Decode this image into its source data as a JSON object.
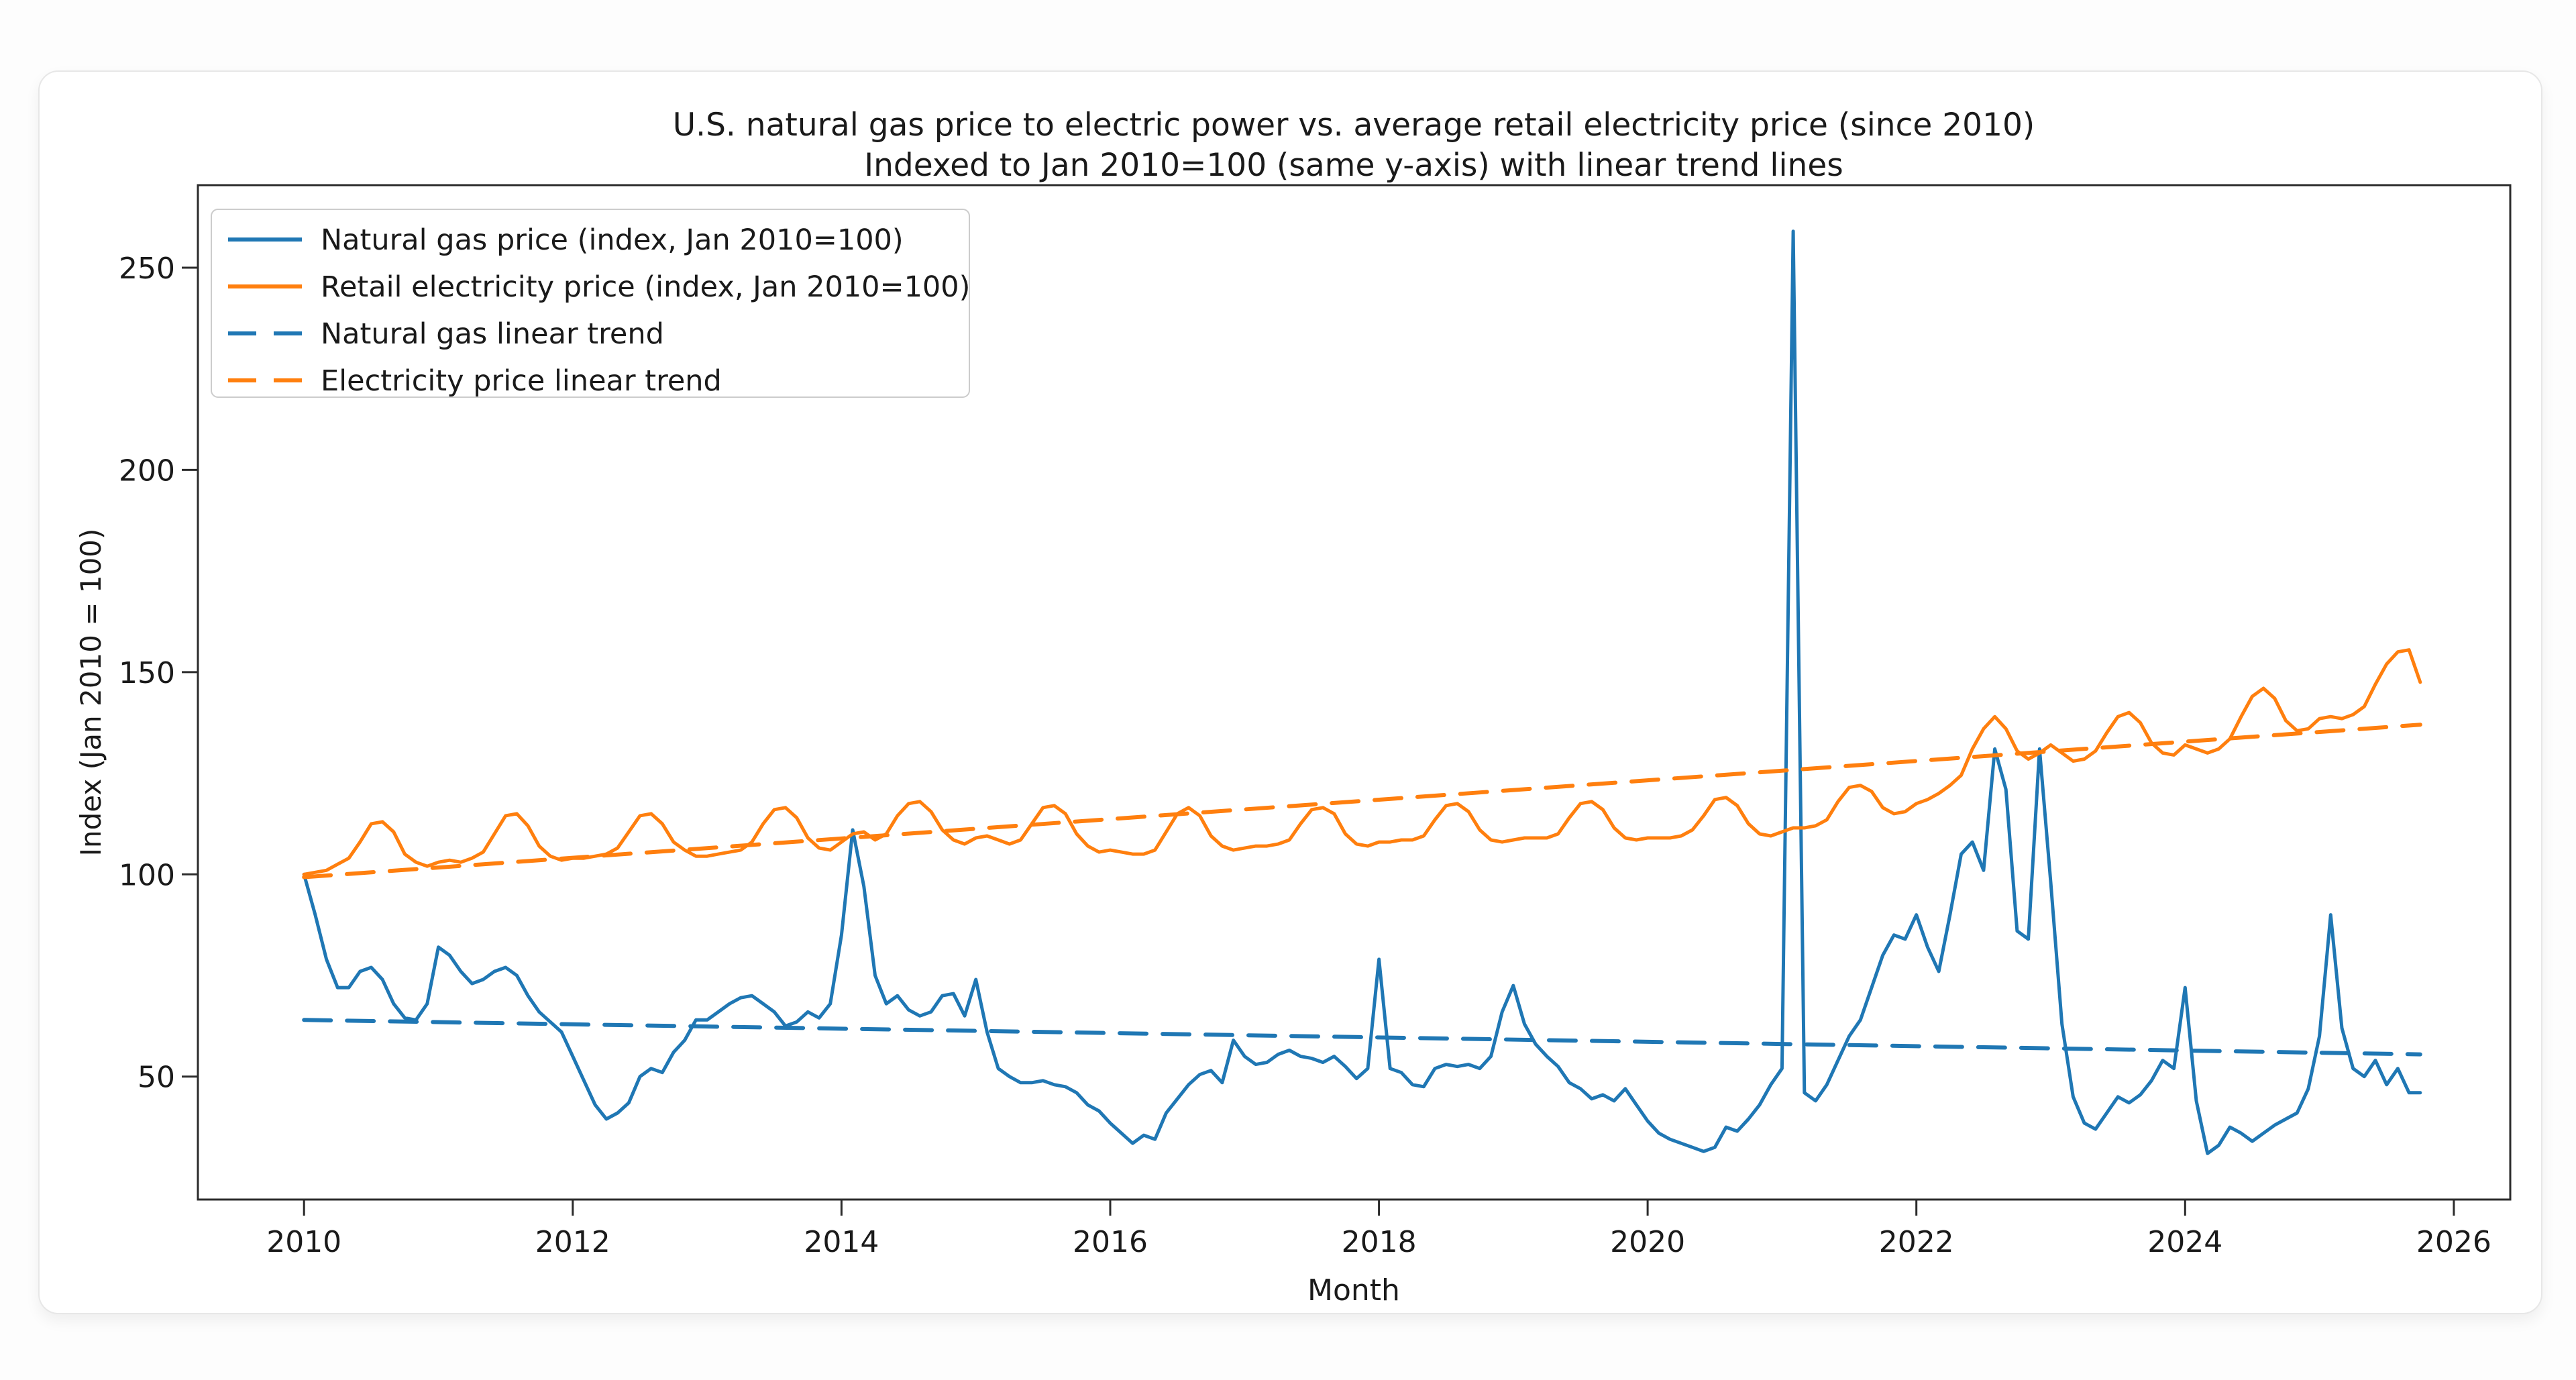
{
  "chart_data": {
    "type": "line",
    "title": "U.S. natural gas price to electric power vs. average retail electricity price (since 2010)",
    "subtitle": "Indexed to Jan 2010=100 (same y-axis) with linear trend lines",
    "xlabel": "Month",
    "ylabel": "Index (Jan 2010 = 100)",
    "x_start_year": 2010,
    "xlim_years": [
      2009.21,
      2026.42
    ],
    "ylim": [
      19.6,
      270.4
    ],
    "x_ticks": [
      2010,
      2012,
      2014,
      2016,
      2018,
      2020,
      2022,
      2024,
      2026
    ],
    "y_ticks": [
      250,
      200,
      150,
      100,
      50
    ],
    "grid": false,
    "legend_position": "upper left",
    "series": [
      {
        "name": "Natural gas price (index, Jan 2010=100)",
        "color": "#1f77b4",
        "style": "solid",
        "values": [
          100,
          90,
          79,
          72,
          72,
          76,
          77,
          74,
          68,
          64.5,
          64,
          68,
          82,
          80,
          76,
          73,
          74,
          76,
          77,
          75,
          70,
          66,
          63.5,
          61,
          55,
          49,
          43,
          39.5,
          41,
          43.5,
          50,
          52,
          51,
          56,
          59,
          64,
          64,
          66,
          68,
          69.5,
          70,
          68,
          66,
          62.5,
          63.5,
          66,
          64.5,
          68,
          85,
          111,
          97,
          75,
          68,
          70,
          66.5,
          65,
          66,
          70,
          70.5,
          65,
          74,
          61,
          52,
          50,
          48.5,
          48.5,
          49,
          48,
          47.5,
          46,
          43,
          41.5,
          38.5,
          36,
          33.5,
          35.5,
          34.5,
          41,
          44.5,
          48,
          50.5,
          51.5,
          48.5,
          59,
          55,
          53,
          53.5,
          55.5,
          56.5,
          55,
          54.5,
          53.5,
          55,
          52.5,
          49.5,
          52,
          79,
          52,
          51,
          48,
          47.5,
          52,
          53,
          52.5,
          53,
          52,
          55,
          66,
          72.5,
          63,
          58,
          55,
          52.5,
          48.5,
          47,
          44.5,
          45.5,
          44,
          47,
          43,
          39,
          36,
          34.5,
          33.5,
          32.5,
          31.5,
          32.5,
          37.5,
          36.5,
          39.5,
          43,
          48,
          52,
          259,
          46,
          44,
          48,
          54,
          60,
          64,
          72,
          80,
          85,
          84,
          90,
          82,
          76,
          90,
          105,
          108,
          101,
          131,
          121,
          86,
          84,
          131,
          98,
          63,
          45,
          38.5,
          37,
          41,
          45,
          43.5,
          45.5,
          49,
          54,
          52,
          72,
          44,
          31,
          33,
          37.5,
          36,
          34,
          36,
          38,
          39.5,
          41,
          47,
          60,
          90,
          62,
          52,
          50,
          54,
          48,
          52,
          46,
          46
        ]
      },
      {
        "name": "Retail electricity price (index, Jan 2010=100)",
        "color": "#ff7f0e",
        "style": "solid",
        "values": [
          100,
          100.5,
          101,
          102.5,
          104,
          108,
          112.5,
          113,
          110.5,
          105,
          103,
          102,
          103,
          103.5,
          103,
          104,
          105.5,
          110,
          114.5,
          115,
          112,
          107,
          104.5,
          103.5,
          104,
          104,
          104.5,
          105,
          106.5,
          110.5,
          114.5,
          115,
          112.5,
          108,
          106,
          104.5,
          104.5,
          105,
          105.5,
          106,
          108,
          112.5,
          116,
          116.5,
          114,
          109,
          106.5,
          106,
          108,
          110,
          110.5,
          108.5,
          110,
          114.5,
          117.5,
          118,
          115.5,
          111,
          108.5,
          107.5,
          109,
          109.5,
          108.5,
          107.5,
          108.5,
          112.5,
          116.5,
          117,
          115,
          110,
          107,
          105.5,
          106,
          105.5,
          105,
          105,
          106,
          110.5,
          115,
          116.5,
          114.5,
          109.5,
          107,
          106,
          106.5,
          107,
          107,
          107.5,
          108.5,
          112.5,
          116,
          116.5,
          115,
          110,
          107.5,
          107,
          108,
          108,
          108.5,
          108.5,
          109.5,
          113.5,
          117,
          117.5,
          115.5,
          111,
          108.5,
          108,
          108.5,
          109,
          109,
          109,
          110,
          114,
          117.5,
          118,
          116,
          111.5,
          109,
          108.5,
          109,
          109,
          109,
          109.5,
          111,
          114.5,
          118.5,
          119,
          117,
          112.5,
          110,
          109.5,
          110.5,
          111.5,
          111.5,
          112,
          113.5,
          118,
          121.5,
          122,
          120.5,
          116.5,
          115,
          115.5,
          117.5,
          118.5,
          120,
          122,
          124.5,
          131,
          136,
          139,
          136,
          130.5,
          128.5,
          130,
          132,
          130,
          128,
          128.5,
          130.5,
          135,
          139,
          140,
          137.5,
          132.5,
          130,
          129.5,
          132,
          131,
          130,
          131,
          133.5,
          139,
          144,
          146,
          143.5,
          138,
          135.5,
          136,
          138.5,
          139,
          138.5,
          139.5,
          141.5,
          147,
          152,
          155,
          155.5,
          147.5
        ]
      },
      {
        "name": "Natural gas linear trend",
        "color": "#1f77b4",
        "style": "dashed",
        "trend_endpoints": [
          64.0,
          55.5
        ]
      },
      {
        "name": "Electricity price linear trend",
        "color": "#ff7f0e",
        "style": "dashed",
        "trend_endpoints": [
          99.3,
          137.0
        ]
      }
    ]
  }
}
